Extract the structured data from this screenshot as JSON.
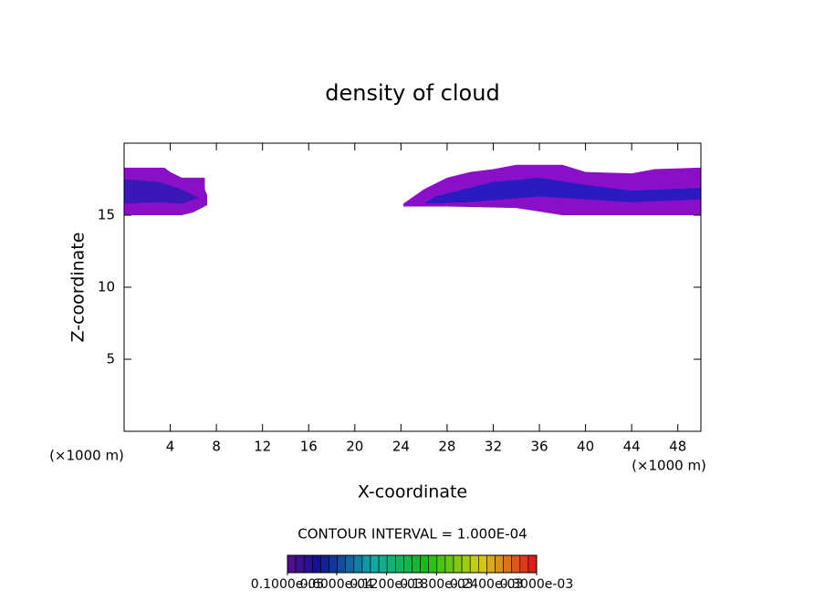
{
  "chart_data": {
    "type": "contour",
    "title": "density of cloud",
    "xlabel": "X-coordinate",
    "ylabel": "Z-coordinate",
    "x_unit_left": "(×1000 m)",
    "x_unit_right": "(×1000 m)",
    "annotation": "CONTOUR INTERVAL = 1.000E-04",
    "xlim": [
      0,
      50
    ],
    "ylim": [
      0,
      20
    ],
    "xticks": [
      4,
      8,
      12,
      16,
      20,
      24,
      28,
      32,
      36,
      40,
      44,
      48
    ],
    "yticks": [
      5,
      10,
      15
    ],
    "regions": [
      {
        "color": "#8a10c8",
        "x": [
          0,
          3.5,
          4,
          5,
          7,
          7,
          7.2,
          7.2,
          6,
          5,
          0
        ],
        "y": [
          18.3,
          18.3,
          18,
          17.6,
          17.6,
          16.8,
          16.4,
          15.7,
          15.2,
          15,
          15
        ]
      },
      {
        "color": "#3a18b8",
        "x": [
          0,
          3,
          5,
          6.5,
          5,
          3,
          0
        ],
        "y": [
          17.5,
          17.3,
          16.8,
          16.2,
          15.8,
          15.9,
          15.8
        ]
      },
      {
        "color": "#8a10c8",
        "x": [
          24.2,
          26,
          28,
          30,
          32,
          34,
          38,
          40,
          44,
          46,
          50,
          50,
          38,
          34,
          28,
          24.2
        ],
        "y": [
          15.8,
          16.8,
          17.6,
          18,
          18.2,
          18.5,
          18.5,
          18,
          17.9,
          18.2,
          18.3,
          15,
          15,
          15.5,
          15.6,
          15.6
        ]
      },
      {
        "color": "#2a1ac0",
        "x": [
          27,
          32,
          36,
          40,
          44,
          50,
          50,
          44,
          40,
          36,
          30,
          26
        ],
        "y": [
          16.3,
          17.3,
          17.6,
          17.1,
          16.7,
          16.9,
          16.1,
          15.9,
          16.1,
          16.3,
          15.9,
          15.8
        ]
      }
    ],
    "colorbar": {
      "range": [
        1e-06,
        0.0003
      ],
      "ticks": [
        {
          "value": 1e-06,
          "label": "0.1000e-05"
        },
        {
          "value": 6e-05,
          "label": "0.6000e-04"
        },
        {
          "value": 0.00012,
          "label": "0.1200e-03"
        },
        {
          "value": 0.00018,
          "label": "0.1800e-03"
        },
        {
          "value": 0.00024,
          "label": "0.2400e-03"
        },
        {
          "value": 0.0003,
          "label": "0.3000e-03"
        }
      ]
    }
  }
}
